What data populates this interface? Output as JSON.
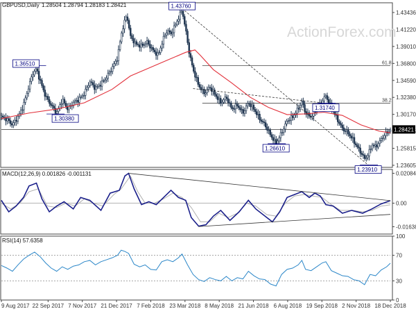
{
  "chart_data": {
    "type": "candlestick",
    "symbol_header": "GBPUSD,Daily",
    "ohlc_header": "1.28504 1.28794 1.28183 1.28421",
    "last_price": "1.28421",
    "watermark": "ActionForex.com",
    "x_ticks": [
      "9 Aug 2017",
      "22 Sep 2017",
      "7 Nov 2017",
      "21 Dec 2017",
      "7 Feb 2018",
      "23 Mar 2018",
      "8 May 2018",
      "21 Jun 2018",
      "6 Aug 2018",
      "19 Sep 2018",
      "2 Nov 2018",
      "18 Dec 2018"
    ],
    "price_axis": {
      "ylim": [
        1.2361,
        1.4448
      ],
      "ticks": [
        "1.43436",
        "1.41220",
        "1.39010",
        "1.36800",
        "1.34590",
        "1.32380",
        "1.30170",
        "1.28025",
        "1.25815",
        "1.23605"
      ]
    },
    "price_path": [
      [
        0,
        1.3
      ],
      [
        6,
        1.297
      ],
      [
        12,
        1.29
      ],
      [
        18,
        1.3
      ],
      [
        24,
        1.315
      ],
      [
        30,
        1.34
      ],
      [
        34,
        1.355
      ],
      [
        38,
        1.361
      ],
      [
        42,
        1.346
      ],
      [
        48,
        1.326
      ],
      [
        54,
        1.315
      ],
      [
        60,
        1.305
      ],
      [
        66,
        1.322
      ],
      [
        72,
        1.31
      ],
      [
        78,
        1.318
      ],
      [
        84,
        1.322
      ],
      [
        90,
        1.33
      ],
      [
        96,
        1.345
      ],
      [
        102,
        1.336
      ],
      [
        108,
        1.342
      ],
      [
        114,
        1.35
      ],
      [
        120,
        1.362
      ],
      [
        126,
        1.375
      ],
      [
        130,
        1.405
      ],
      [
        133,
        1.418
      ],
      [
        136,
        1.43
      ],
      [
        140,
        1.402
      ],
      [
        146,
        1.392
      ],
      [
        152,
        1.39
      ],
      [
        158,
        1.395
      ],
      [
        164,
        1.385
      ],
      [
        170,
        1.378
      ],
      [
        176,
        1.4
      ],
      [
        180,
        1.41
      ],
      [
        184,
        1.405
      ],
      [
        188,
        1.415
      ],
      [
        192,
        1.425
      ],
      [
        196,
        1.436
      ],
      [
        200,
        1.41
      ],
      [
        204,
        1.38
      ],
      [
        208,
        1.36
      ],
      [
        214,
        1.34
      ],
      [
        220,
        1.33
      ],
      [
        226,
        1.338
      ],
      [
        232,
        1.328
      ],
      [
        238,
        1.318
      ],
      [
        244,
        1.325
      ],
      [
        250,
        1.31
      ],
      [
        256,
        1.315
      ],
      [
        262,
        1.305
      ],
      [
        268,
        1.318
      ],
      [
        274,
        1.31
      ],
      [
        280,
        1.298
      ],
      [
        286,
        1.29
      ],
      [
        292,
        1.277
      ],
      [
        298,
        1.266
      ],
      [
        304,
        1.28
      ],
      [
        310,
        1.295
      ],
      [
        316,
        1.3
      ],
      [
        322,
        1.31
      ],
      [
        326,
        1.32
      ],
      [
        330,
        1.305
      ],
      [
        336,
        1.3
      ],
      [
        342,
        1.31
      ],
      [
        348,
        1.32
      ],
      [
        352,
        1.327
      ],
      [
        358,
        1.312
      ],
      [
        364,
        1.298
      ],
      [
        370,
        1.285
      ],
      [
        376,
        1.28
      ],
      [
        382,
        1.27
      ],
      [
        386,
        1.262
      ],
      [
        390,
        1.255
      ],
      [
        394,
        1.247
      ],
      [
        398,
        1.252
      ],
      [
        402,
        1.265
      ],
      [
        406,
        1.262
      ],
      [
        410,
        1.268
      ],
      [
        414,
        1.275
      ],
      [
        418,
        1.28
      ],
      [
        422,
        1.284
      ]
    ],
    "ema_path": [
      [
        0,
        1.298
      ],
      [
        30,
        1.305
      ],
      [
        60,
        1.31
      ],
      [
        90,
        1.318
      ],
      [
        120,
        1.335
      ],
      [
        140,
        1.352
      ],
      [
        160,
        1.362
      ],
      [
        180,
        1.372
      ],
      [
        200,
        1.382
      ],
      [
        210,
        1.385
      ],
      [
        216,
        1.378
      ],
      [
        230,
        1.36
      ],
      [
        250,
        1.343
      ],
      [
        270,
        1.325
      ],
      [
        290,
        1.312
      ],
      [
        310,
        1.303
      ],
      [
        330,
        1.304
      ],
      [
        350,
        1.306
      ],
      [
        370,
        1.302
      ],
      [
        390,
        1.29
      ],
      [
        410,
        1.282
      ],
      [
        422,
        1.28
      ]
    ],
    "key_levels": [
      {
        "label": "1.43760",
        "value": 1.4376,
        "x": 196
      },
      {
        "label": "1.36510",
        "value": 1.3651,
        "x": 38
      },
      {
        "label": "1.30380",
        "value": 1.3038,
        "x": 58
      },
      {
        "label": "1.26610",
        "value": 1.2661,
        "x": 298
      },
      {
        "label": "1.31740",
        "value": 1.3174,
        "x": 352
      },
      {
        "label": "1.23910",
        "value": 1.2391,
        "x": 398
      }
    ],
    "fib_levels": [
      {
        "label": "61.8",
        "value": 1.3651,
        "x_from": 218
      },
      {
        "label": "38.2",
        "value": 1.3174,
        "x_from": 218
      }
    ],
    "support_line": {
      "value": 1.2842
    },
    "trend_lines": [
      {
        "from": [
          196,
          1.4376
        ],
        "to": [
          398,
          1.2391
        ]
      },
      {
        "from": [
          208,
          1.336
        ],
        "to": [
          348,
          1.318
        ]
      }
    ],
    "macd": {
      "label": "MACD(12,26,9) 0.001826 -0.001131",
      "ylim": [
        -0.0215,
        0.0235
      ],
      "ticks": [
        "0.020848",
        "0.00",
        "-0.016389"
      ],
      "zero": 0.0,
      "line": [
        [
          0,
          0.002
        ],
        [
          8,
          -0.006
        ],
        [
          16,
          -0.002
        ],
        [
          24,
          0.004
        ],
        [
          30,
          0.012
        ],
        [
          38,
          0.014
        ],
        [
          44,
          0.003
        ],
        [
          52,
          -0.006
        ],
        [
          60,
          -0.002
        ],
        [
          68,
          0.001
        ],
        [
          78,
          -0.004
        ],
        [
          86,
          0.004
        ],
        [
          96,
          0.002
        ],
        [
          108,
          -0.005
        ],
        [
          118,
          0.007
        ],
        [
          128,
          0.009
        ],
        [
          134,
          0.019
        ],
        [
          138,
          0.0208
        ],
        [
          144,
          0.01
        ],
        [
          152,
          -0.001
        ],
        [
          160,
          0.001
        ],
        [
          168,
          -0.001
        ],
        [
          176,
          0.004
        ],
        [
          184,
          0.009
        ],
        [
          192,
          0.004
        ],
        [
          200,
          0.002
        ],
        [
          206,
          -0.01
        ],
        [
          214,
          -0.016
        ],
        [
          222,
          -0.015
        ],
        [
          230,
          -0.009
        ],
        [
          238,
          -0.005
        ],
        [
          248,
          -0.012
        ],
        [
          258,
          -0.006
        ],
        [
          268,
          0.002
        ],
        [
          276,
          -0.004
        ],
        [
          284,
          -0.008
        ],
        [
          294,
          -0.013
        ],
        [
          302,
          -0.006
        ],
        [
          310,
          0.004
        ],
        [
          318,
          0.006
        ],
        [
          326,
          0.008
        ],
        [
          334,
          0.004
        ],
        [
          340,
          0.007
        ],
        [
          346,
          0.005
        ],
        [
          352,
          -0.001
        ],
        [
          360,
          -0.002
        ],
        [
          370,
          -0.007
        ],
        [
          380,
          -0.005
        ],
        [
          392,
          -0.007
        ],
        [
          402,
          -0.004
        ],
        [
          412,
          -0.0005
        ],
        [
          422,
          0.0018
        ]
      ],
      "signal": [
        [
          0,
          0.0
        ],
        [
          10,
          -0.004
        ],
        [
          20,
          0.0
        ],
        [
          30,
          0.008
        ],
        [
          40,
          0.01
        ],
        [
          50,
          -0.002
        ],
        [
          60,
          -0.003
        ],
        [
          70,
          0.0
        ],
        [
          80,
          -0.002
        ],
        [
          90,
          0.003
        ],
        [
          100,
          0.0
        ],
        [
          110,
          -0.002
        ],
        [
          122,
          0.006
        ],
        [
          130,
          0.01
        ],
        [
          140,
          0.019
        ],
        [
          148,
          0.008
        ],
        [
          156,
          0.0
        ],
        [
          166,
          0.0
        ],
        [
          176,
          0.003
        ],
        [
          186,
          0.007
        ],
        [
          196,
          0.004
        ],
        [
          206,
          -0.003
        ],
        [
          216,
          -0.013
        ],
        [
          226,
          -0.013
        ],
        [
          236,
          -0.007
        ],
        [
          246,
          -0.01
        ],
        [
          256,
          -0.007
        ],
        [
          266,
          0.0
        ],
        [
          276,
          -0.002
        ],
        [
          288,
          -0.008
        ],
        [
          298,
          -0.009
        ],
        [
          308,
          0.0
        ],
        [
          318,
          0.005
        ],
        [
          328,
          0.006
        ],
        [
          338,
          0.005
        ],
        [
          348,
          0.004
        ],
        [
          358,
          -0.001
        ],
        [
          368,
          -0.005
        ],
        [
          380,
          -0.005
        ],
        [
          392,
          -0.006
        ],
        [
          402,
          -0.005
        ],
        [
          412,
          -0.002
        ],
        [
          422,
          -0.0011
        ]
      ],
      "trend_lines": [
        {
          "from": [
            138,
            0.0208
          ],
          "to": [
            422,
            0.0018
          ]
        },
        {
          "from": [
            214,
            -0.0163
          ],
          "to": [
            422,
            -0.0078
          ]
        }
      ]
    },
    "rsi": {
      "label": "RSI(14) 57.6358",
      "ylim": [
        0,
        100
      ],
      "ticks": [
        "100",
        "70",
        "30",
        "0"
      ],
      "levels": [
        70,
        30
      ],
      "line": [
        [
          0,
          54
        ],
        [
          6,
          50
        ],
        [
          12,
          45
        ],
        [
          18,
          55
        ],
        [
          24,
          64
        ],
        [
          30,
          70
        ],
        [
          36,
          75
        ],
        [
          42,
          68
        ],
        [
          48,
          58
        ],
        [
          54,
          50
        ],
        [
          60,
          45
        ],
        [
          66,
          52
        ],
        [
          72,
          48
        ],
        [
          78,
          53
        ],
        [
          84,
          55
        ],
        [
          90,
          60
        ],
        [
          96,
          62
        ],
        [
          102,
          55
        ],
        [
          108,
          60
        ],
        [
          114,
          63
        ],
        [
          120,
          66
        ],
        [
          126,
          70
        ],
        [
          130,
          78
        ],
        [
          134,
          76
        ],
        [
          138,
          73
        ],
        [
          144,
          56
        ],
        [
          150,
          52
        ],
        [
          156,
          55
        ],
        [
          162,
          48
        ],
        [
          168,
          47
        ],
        [
          174,
          60
        ],
        [
          180,
          63
        ],
        [
          186,
          60
        ],
        [
          192,
          66
        ],
        [
          196,
          72
        ],
        [
          202,
          55
        ],
        [
          208,
          40
        ],
        [
          214,
          32
        ],
        [
          220,
          29
        ],
        [
          226,
          35
        ],
        [
          232,
          32
        ],
        [
          238,
          30
        ],
        [
          244,
          37
        ],
        [
          250,
          30
        ],
        [
          256,
          35
        ],
        [
          262,
          33
        ],
        [
          268,
          45
        ],
        [
          274,
          38
        ],
        [
          280,
          33
        ],
        [
          286,
          32
        ],
        [
          292,
          25
        ],
        [
          298,
          22
        ],
        [
          304,
          40
        ],
        [
          310,
          48
        ],
        [
          316,
          50
        ],
        [
          322,
          55
        ],
        [
          326,
          62
        ],
        [
          330,
          48
        ],
        [
          336,
          46
        ],
        [
          342,
          52
        ],
        [
          348,
          58
        ],
        [
          352,
          60
        ],
        [
          358,
          46
        ],
        [
          364,
          42
        ],
        [
          370,
          38
        ],
        [
          376,
          37
        ],
        [
          382,
          32
        ],
        [
          388,
          30
        ],
        [
          394,
          24
        ],
        [
          400,
          40
        ],
        [
          406,
          38
        ],
        [
          412,
          47
        ],
        [
          418,
          52
        ],
        [
          422,
          57.6
        ]
      ]
    }
  }
}
